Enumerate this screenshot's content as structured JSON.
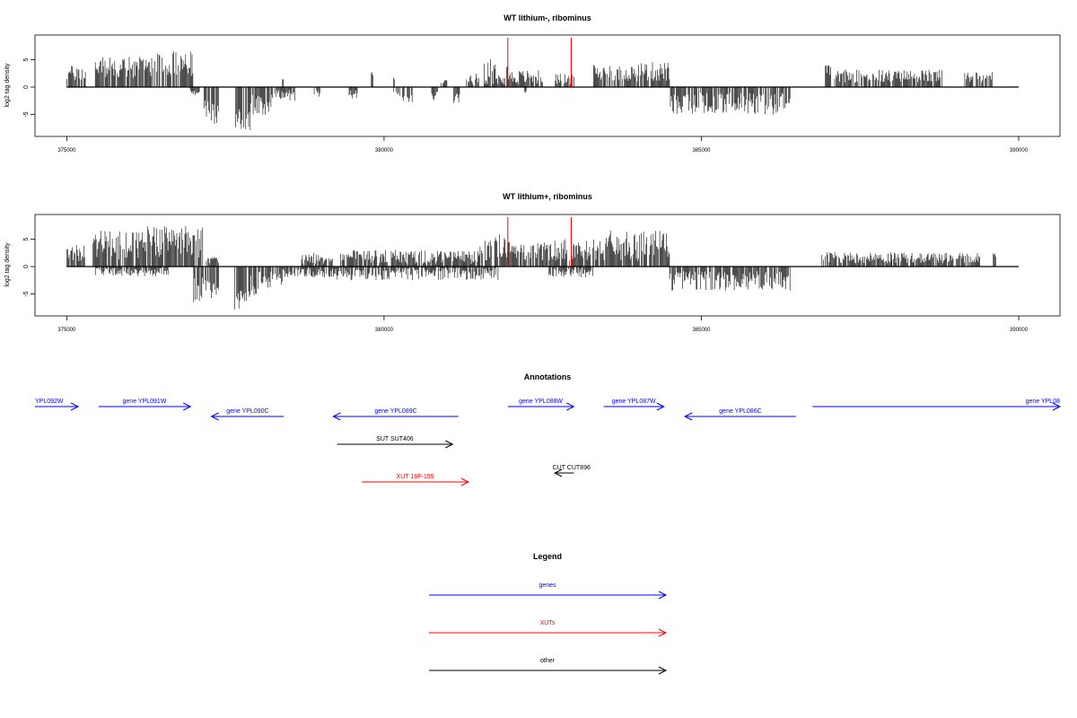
{
  "colors": {
    "ink": "#000000",
    "gene": "#0000ff",
    "xut": "#ff0000",
    "marker": "#ff0000"
  },
  "chart_data": [
    {
      "type": "bar",
      "title": "WT lithium-, ribominus",
      "ylabel": "log2 tag density",
      "xlim": [
        374500,
        390650
      ],
      "ylim": [
        -9,
        9.5
      ],
      "xticks": [
        375000,
        380000,
        385000,
        390000
      ],
      "yticks": [
        -5,
        0,
        5
      ],
      "red_markers": [
        381950,
        382950
      ],
      "baseline": [
        375000,
        390000
      ],
      "positive_segments": [
        {
          "start": 375000,
          "end": 375300,
          "mean": 2.5,
          "amp": 1.5
        },
        {
          "start": 375450,
          "end": 376300,
          "mean": 3.6,
          "amp": 2.0
        },
        {
          "start": 376300,
          "end": 377000,
          "mean": 4.2,
          "amp": 2.3
        },
        {
          "start": 378400,
          "end": 378420,
          "mean": 1.2,
          "amp": 0.3
        },
        {
          "start": 379800,
          "end": 379830,
          "mean": 2.5,
          "amp": 0.5
        },
        {
          "start": 380150,
          "end": 380170,
          "mean": 1.5,
          "amp": 0.3
        },
        {
          "start": 380900,
          "end": 381000,
          "mean": 1.0,
          "amp": 0.5
        },
        {
          "start": 381300,
          "end": 381500,
          "mean": 1.5,
          "amp": 1.0
        },
        {
          "start": 381550,
          "end": 381950,
          "mean": 3.0,
          "amp": 2.5
        },
        {
          "start": 381950,
          "end": 382500,
          "mean": 1.8,
          "amp": 1.3
        },
        {
          "start": 382700,
          "end": 383000,
          "mean": 1.5,
          "amp": 1.0
        },
        {
          "start": 383300,
          "end": 384000,
          "mean": 2.6,
          "amp": 1.6
        },
        {
          "start": 384000,
          "end": 384500,
          "mean": 2.8,
          "amp": 1.8
        },
        {
          "start": 386950,
          "end": 387050,
          "mean": 3.0,
          "amp": 1.0
        },
        {
          "start": 387100,
          "end": 387900,
          "mean": 2.0,
          "amp": 1.2
        },
        {
          "start": 387900,
          "end": 388800,
          "mean": 2.0,
          "amp": 1.2
        },
        {
          "start": 389150,
          "end": 389600,
          "mean": 1.8,
          "amp": 1.0
        }
      ],
      "negative_segments": [
        {
          "start": 376950,
          "end": 377100,
          "mean": 1.0,
          "amp": 0.5
        },
        {
          "start": 377150,
          "end": 377400,
          "mean": 4.5,
          "amp": 2.5
        },
        {
          "start": 377650,
          "end": 377900,
          "mean": 6.0,
          "amp": 2.0
        },
        {
          "start": 377900,
          "end": 378250,
          "mean": 3.0,
          "amp": 2.0
        },
        {
          "start": 378250,
          "end": 378600,
          "mean": 1.5,
          "amp": 1.0
        },
        {
          "start": 378900,
          "end": 379000,
          "mean": 1.2,
          "amp": 0.6
        },
        {
          "start": 379450,
          "end": 379600,
          "mean": 1.5,
          "amp": 1.0
        },
        {
          "start": 380150,
          "end": 380450,
          "mean": 1.8,
          "amp": 1.0
        },
        {
          "start": 380750,
          "end": 380850,
          "mean": 1.8,
          "amp": 1.0
        },
        {
          "start": 381100,
          "end": 381200,
          "mean": 2.0,
          "amp": 1.0
        },
        {
          "start": 382200,
          "end": 382250,
          "mean": 1.0,
          "amp": 0.5
        },
        {
          "start": 384500,
          "end": 386400,
          "mean": 3.0,
          "amp": 2.0
        }
      ]
    },
    {
      "type": "bar",
      "title": "WT lithium+, ribominus",
      "ylabel": "log2 tag density",
      "xlim": [
        374500,
        390650
      ],
      "ylim": [
        -9,
        9.5
      ],
      "xticks": [
        375000,
        380000,
        385000,
        390000
      ],
      "yticks": [
        -5,
        0,
        5
      ],
      "red_markers": [
        381950,
        382950
      ],
      "baseline": [
        375000,
        390000
      ],
      "positive_segments": [
        {
          "start": 375000,
          "end": 375300,
          "mean": 2.5,
          "amp": 1.5
        },
        {
          "start": 375400,
          "end": 376200,
          "mean": 4.0,
          "amp": 2.8
        },
        {
          "start": 376200,
          "end": 377150,
          "mean": 4.6,
          "amp": 3.0
        },
        {
          "start": 377200,
          "end": 377400,
          "mean": 1.2,
          "amp": 0.6
        },
        {
          "start": 378700,
          "end": 379200,
          "mean": 1.5,
          "amp": 1.0
        },
        {
          "start": 379300,
          "end": 380000,
          "mean": 1.8,
          "amp": 1.2
        },
        {
          "start": 380000,
          "end": 381500,
          "mean": 1.8,
          "amp": 1.3
        },
        {
          "start": 381500,
          "end": 381950,
          "mean": 3.6,
          "amp": 2.5
        },
        {
          "start": 381950,
          "end": 382500,
          "mean": 2.8,
          "amp": 1.8
        },
        {
          "start": 382500,
          "end": 383300,
          "mean": 3.0,
          "amp": 2.0
        },
        {
          "start": 383300,
          "end": 384500,
          "mean": 3.8,
          "amp": 2.8
        },
        {
          "start": 386900,
          "end": 388000,
          "mean": 1.6,
          "amp": 1.0
        },
        {
          "start": 388000,
          "end": 389400,
          "mean": 1.6,
          "amp": 1.0
        },
        {
          "start": 389600,
          "end": 389650,
          "mean": 2.0,
          "amp": 0.5
        }
      ],
      "negative_segments": [
        {
          "start": 375450,
          "end": 376600,
          "mean": 1.0,
          "amp": 0.8
        },
        {
          "start": 377000,
          "end": 377400,
          "mean": 4.0,
          "amp": 2.5
        },
        {
          "start": 377650,
          "end": 377900,
          "mean": 6.0,
          "amp": 2.0
        },
        {
          "start": 377900,
          "end": 378400,
          "mean": 3.0,
          "amp": 2.2
        },
        {
          "start": 378400,
          "end": 379200,
          "mean": 1.2,
          "amp": 0.8
        },
        {
          "start": 379200,
          "end": 381800,
          "mean": 1.3,
          "amp": 1.2
        },
        {
          "start": 382600,
          "end": 383300,
          "mean": 1.2,
          "amp": 0.8
        },
        {
          "start": 384500,
          "end": 386400,
          "mean": 2.6,
          "amp": 1.8
        }
      ]
    }
  ],
  "annotations": {
    "title": "Annotations",
    "xlim": [
      374500,
      390650
    ],
    "features": [
      {
        "label": "YPL092W",
        "start": 374500,
        "end": 375180,
        "dir": "right",
        "color": "gene",
        "row": 0
      },
      {
        "label": "gene YPL091W",
        "start": 375500,
        "end": 376950,
        "dir": "right",
        "color": "gene",
        "row": 0
      },
      {
        "label": "gene YPL090C",
        "start": 377280,
        "end": 378420,
        "dir": "left",
        "color": "gene",
        "row": 1
      },
      {
        "label": "gene YPL089C",
        "start": 379200,
        "end": 381170,
        "dir": "left",
        "color": "gene",
        "row": 1
      },
      {
        "label": "gene YPL088W",
        "start": 381950,
        "end": 382990,
        "dir": "right",
        "color": "gene",
        "row": 0
      },
      {
        "label": "gene YPL087W",
        "start": 383460,
        "end": 384410,
        "dir": "right",
        "color": "gene",
        "row": 0
      },
      {
        "label": "gene YPL086C",
        "start": 384740,
        "end": 386490,
        "dir": "left",
        "color": "gene",
        "row": 1
      },
      {
        "label": "gene YPL08",
        "start": 386750,
        "end": 390650,
        "dir": "right",
        "color": "gene",
        "row": 0
      },
      {
        "label": "SUT SUT406",
        "start": 379260,
        "end": 381080,
        "dir": "right",
        "color": "other",
        "row": 2
      },
      {
        "label": "CUT CUT896",
        "start": 382690,
        "end": 382990,
        "dir": "left",
        "color": "other",
        "row": 3
      },
      {
        "label": "XUT 16F-155",
        "start": 379650,
        "end": 381330,
        "dir": "right",
        "color": "xut",
        "row": 4
      }
    ]
  },
  "legend": {
    "title": "Legend",
    "items": [
      {
        "label": "genes",
        "color": "gene"
      },
      {
        "label": "XUTs",
        "color": "xut"
      },
      {
        "label": "other",
        "color": "other"
      }
    ]
  }
}
